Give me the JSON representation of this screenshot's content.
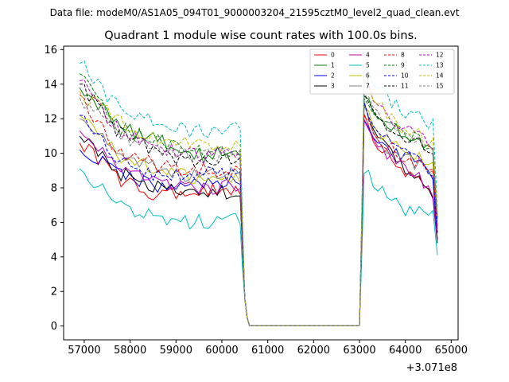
{
  "chart_data": {
    "type": "line",
    "suptitle": "Data file: modeM0/AS1A05_094T01_9000003204_21595cztM0_level2_quad_clean.evt",
    "title": "Quadrant 1 module wise count rates with 100.0s bins.",
    "x_offset_label": "+3.071e8",
    "xlim": [
      56550,
      65150
    ],
    "ylim": [
      -0.8,
      16.2
    ],
    "xticks": [
      57000,
      58000,
      59000,
      60000,
      61000,
      62000,
      63000,
      64000,
      65000
    ],
    "yticks": [
      0,
      2,
      4,
      6,
      8,
      10,
      12,
      14,
      16
    ],
    "legend_position": "top-right",
    "bin_seconds": 100,
    "x_start": 56900,
    "x_step": 100,
    "gap_start": 60600,
    "gap_end": 63000,
    "series": [
      {
        "name": "0",
        "color": "#ff0000",
        "style": "solid",
        "first": 10.6,
        "seg1": [
          10.6,
          8.5,
          7.5,
          7.8,
          8.0
        ],
        "seg2": [
          12.0,
          10.2,
          9.3,
          8.4,
          7.4
        ],
        "tail": 5.4
      },
      {
        "name": "1",
        "color": "#008000",
        "style": "solid",
        "first": 13.8,
        "seg1": [
          13.8,
          11.6,
          10.8,
          9.8,
          10.2
        ],
        "seg2": [
          13.6,
          12.0,
          11.2,
          10.6,
          10.2
        ],
        "tail": 6.2
      },
      {
        "name": "2",
        "color": "#0000ff",
        "style": "solid",
        "first": 10.2,
        "seg1": [
          10.2,
          8.9,
          8.0,
          8.1,
          8.5
        ],
        "seg2": [
          12.0,
          10.6,
          10.0,
          9.4,
          8.6
        ],
        "tail": 5.0
      },
      {
        "name": "3",
        "color": "#000000",
        "style": "solid",
        "first": 11.0,
        "seg1": [
          11.0,
          8.8,
          7.9,
          7.6,
          7.8
        ],
        "seg2": [
          12.8,
          10.8,
          9.3,
          8.5,
          7.6
        ],
        "tail": 4.8
      },
      {
        "name": "4",
        "color": "#bf00bf",
        "style": "solid",
        "first": 11.3,
        "seg1": [
          11.3,
          9.0,
          8.2,
          7.9,
          8.2
        ],
        "seg2": [
          12.3,
          10.2,
          9.5,
          8.7,
          7.8
        ],
        "tail": 5.0
      },
      {
        "name": "5",
        "color": "#00bfbf",
        "style": "solid",
        "first": 9.1,
        "seg1": [
          9.1,
          7.0,
          6.2,
          6.0,
          6.1
        ],
        "seg2": [
          9.0,
          7.8,
          6.9,
          6.6,
          6.3
        ],
        "tail": 4.1
      },
      {
        "name": "6",
        "color": "#bfbf00",
        "style": "solid",
        "first": 12.2,
        "seg1": [
          12.2,
          9.8,
          8.9,
          8.5,
          8.5
        ],
        "seg2": [
          12.6,
          11.2,
          10.4,
          9.8,
          9.2
        ],
        "tail": 5.8
      },
      {
        "name": "7",
        "color": "#808080",
        "style": "solid",
        "first": 12.0,
        "seg1": [
          12.0,
          10.0,
          9.0,
          8.6,
          8.9
        ],
        "seg2": [
          12.5,
          10.6,
          10.0,
          9.3,
          8.8
        ],
        "tail": 5.6
      },
      {
        "name": "8",
        "color": "#ff0000",
        "style": "dashed",
        "first": 13.4,
        "seg1": [
          13.4,
          10.0,
          9.2,
          9.0,
          9.2
        ],
        "seg2": [
          12.4,
          10.6,
          10.0,
          9.5,
          9.0
        ],
        "tail": 5.8
      },
      {
        "name": "9",
        "color": "#008000",
        "style": "dashed",
        "first": 14.6,
        "seg1": [
          14.6,
          11.4,
          10.6,
          10.0,
          10.0
        ],
        "seg2": [
          13.2,
          12.0,
          11.2,
          10.8,
          10.3
        ],
        "tail": 6.2
      },
      {
        "name": "10",
        "color": "#0000ff",
        "style": "dashed",
        "first": 12.2,
        "seg1": [
          12.2,
          9.6,
          8.7,
          8.7,
          9.0
        ],
        "seg2": [
          12.8,
          11.0,
          10.2,
          9.6,
          8.8
        ],
        "tail": 5.4
      },
      {
        "name": "11",
        "color": "#000000",
        "style": "dashed",
        "first": 14.0,
        "seg1": [
          14.0,
          11.2,
          10.0,
          9.5,
          9.8
        ],
        "seg2": [
          13.8,
          11.8,
          11.0,
          10.6,
          10.2
        ],
        "tail": 6.2
      },
      {
        "name": "12",
        "color": "#bf00bf",
        "style": "dashed",
        "first": 14.2,
        "seg1": [
          14.2,
          11.2,
          10.4,
          9.8,
          10.2
        ],
        "seg2": [
          14.0,
          12.6,
          11.6,
          11.0,
          10.6
        ],
        "tail": 6.4
      },
      {
        "name": "13",
        "color": "#00bfbf",
        "style": "dashed",
        "first": 15.2,
        "seg1": [
          15.2,
          12.6,
          11.8,
          11.2,
          11.4
        ],
        "seg2": [
          14.8,
          13.6,
          12.6,
          12.2,
          11.6
        ],
        "tail": 6.8
      },
      {
        "name": "14",
        "color": "#bfbf00",
        "style": "dashed",
        "first": 13.6,
        "seg1": [
          13.6,
          11.8,
          10.8,
          10.6,
          10.4
        ],
        "seg2": [
          14.0,
          12.6,
          11.6,
          11.2,
          10.6
        ],
        "tail": 6.4
      },
      {
        "name": "15",
        "color": "#808080",
        "style": "dashed",
        "first": 13.2,
        "seg1": [
          13.2,
          11.0,
          10.0,
          9.8,
          10.0
        ],
        "seg2": [
          13.6,
          12.2,
          11.2,
          10.6,
          10.0
        ],
        "tail": 6.0
      }
    ]
  }
}
